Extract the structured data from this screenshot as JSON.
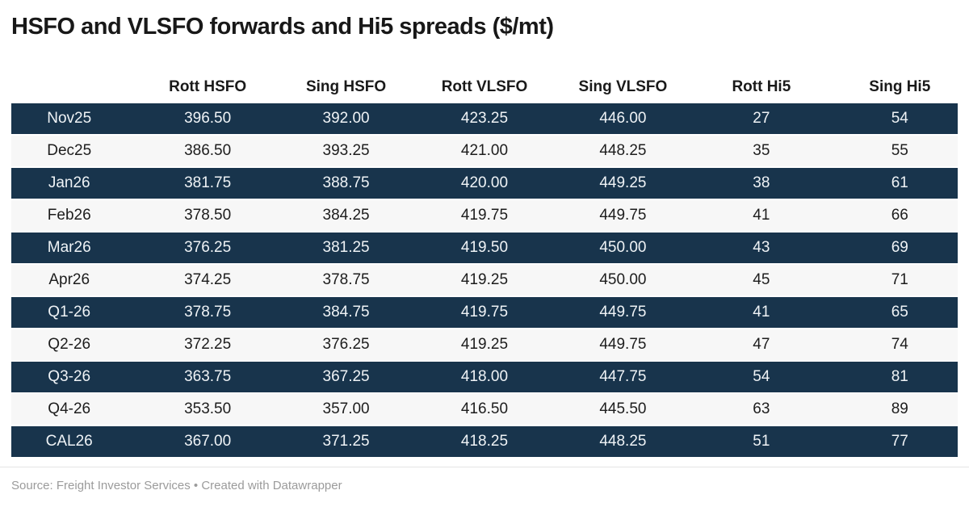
{
  "title": "HSFO and VLSFO forwards and Hi5 spreads ($/mt)",
  "table": {
    "columns": [
      "",
      "Rott HSFO",
      "Sing HSFO",
      "Rott VLSFO",
      "Sing VLSFO",
      "Rott Hi5",
      "Sing Hi5"
    ],
    "rows": [
      {
        "label": "Nov25",
        "values": [
          "396.50",
          "392.00",
          "423.25",
          "446.00",
          "27",
          "54"
        ]
      },
      {
        "label": "Dec25",
        "values": [
          "386.50",
          "393.25",
          "421.00",
          "448.25",
          "35",
          "55"
        ]
      },
      {
        "label": "Jan26",
        "values": [
          "381.75",
          "388.75",
          "420.00",
          "449.25",
          "38",
          "61"
        ]
      },
      {
        "label": "Feb26",
        "values": [
          "378.50",
          "384.25",
          "419.75",
          "449.75",
          "41",
          "66"
        ]
      },
      {
        "label": "Mar26",
        "values": [
          "376.25",
          "381.25",
          "419.50",
          "450.00",
          "43",
          "69"
        ]
      },
      {
        "label": "Apr26",
        "values": [
          "374.25",
          "378.75",
          "419.25",
          "450.00",
          "45",
          "71"
        ]
      },
      {
        "label": "Q1-26",
        "values": [
          "378.75",
          "384.75",
          "419.75",
          "449.75",
          "41",
          "65"
        ]
      },
      {
        "label": "Q2-26",
        "values": [
          "372.25",
          "376.25",
          "419.25",
          "449.75",
          "47",
          "74"
        ]
      },
      {
        "label": "Q3-26",
        "values": [
          "363.75",
          "367.25",
          "418.00",
          "447.75",
          "54",
          "81"
        ]
      },
      {
        "label": "Q4-26",
        "values": [
          "353.50",
          "357.00",
          "416.50",
          "445.50",
          "63",
          "89"
        ]
      },
      {
        "label": "CAL26",
        "values": [
          "367.00",
          "371.25",
          "418.25",
          "448.25",
          "51",
          "77"
        ]
      }
    ]
  },
  "footer": {
    "text": "Source: Freight Investor Services • Created with Datawrapper"
  },
  "colors": {
    "dark_row_bg": "#18344c",
    "dark_row_text": "#eff3f6",
    "light_row_bg": "#f7f7f7",
    "light_row_text": "#1d1d1d",
    "header_text": "#1a1a1a",
    "title_text": "#181818",
    "footer_text": "#9b9b9b"
  },
  "chart_data": {
    "type": "table",
    "title": "HSFO and VLSFO forwards and Hi5 spreads ($/mt)",
    "categories": [
      "Nov25",
      "Dec25",
      "Jan26",
      "Feb26",
      "Mar26",
      "Apr26",
      "Q1-26",
      "Q2-26",
      "Q3-26",
      "Q4-26",
      "CAL26"
    ],
    "series": [
      {
        "name": "Rott HSFO",
        "values": [
          396.5,
          386.5,
          381.75,
          378.5,
          376.25,
          374.25,
          378.75,
          372.25,
          363.75,
          353.5,
          367.0
        ]
      },
      {
        "name": "Sing HSFO",
        "values": [
          392.0,
          393.25,
          388.75,
          384.25,
          381.25,
          378.75,
          384.75,
          376.25,
          367.25,
          357.0,
          371.25
        ]
      },
      {
        "name": "Rott VLSFO",
        "values": [
          423.25,
          421.0,
          420.0,
          419.75,
          419.5,
          419.25,
          419.75,
          419.25,
          418.0,
          416.5,
          418.25
        ]
      },
      {
        "name": "Sing VLSFO",
        "values": [
          446.0,
          448.25,
          449.25,
          449.75,
          450.0,
          450.0,
          449.75,
          449.75,
          447.75,
          445.5,
          448.25
        ]
      },
      {
        "name": "Rott Hi5",
        "values": [
          27,
          35,
          38,
          41,
          43,
          45,
          41,
          47,
          54,
          63,
          51
        ]
      },
      {
        "name": "Sing Hi5",
        "values": [
          54,
          55,
          61,
          66,
          69,
          71,
          65,
          74,
          81,
          89,
          77
        ]
      }
    ],
    "source": "Freight Investor Services",
    "layout_hints": {
      "striped_rows": true,
      "first_row_style": "dark",
      "cell_alignment": "center"
    }
  }
}
